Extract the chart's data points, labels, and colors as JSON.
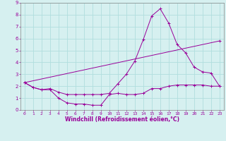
{
  "xlabel": "Windchill (Refroidissement éolien,°C)",
  "bg_color": "#d6f0f0",
  "line_color": "#990099",
  "grid_color": "#b0dede",
  "xlim": [
    -0.5,
    23.5
  ],
  "ylim": [
    0,
    9
  ],
  "xticks": [
    0,
    1,
    2,
    3,
    4,
    5,
    6,
    7,
    8,
    9,
    10,
    11,
    12,
    13,
    14,
    15,
    16,
    17,
    18,
    19,
    20,
    21,
    22,
    23
  ],
  "yticks": [
    0,
    1,
    2,
    3,
    4,
    5,
    6,
    7,
    8,
    9
  ],
  "line1_x": [
    0,
    1,
    2,
    3,
    4,
    5,
    6,
    7,
    8,
    9,
    10,
    11,
    12,
    13,
    14,
    15,
    16,
    17,
    18,
    19,
    20,
    21,
    22,
    23
  ],
  "line1_y": [
    2.3,
    1.9,
    1.7,
    1.7,
    1.0,
    0.6,
    0.5,
    0.5,
    0.4,
    0.4,
    1.3,
    1.4,
    1.3,
    1.3,
    1.4,
    1.8,
    1.8,
    2.0,
    2.1,
    2.1,
    2.1,
    2.1,
    2.0,
    2.0
  ],
  "line2_x": [
    0,
    1,
    2,
    3,
    4,
    5,
    6,
    7,
    8,
    9,
    10,
    11,
    12,
    13,
    14,
    15,
    16,
    17,
    18,
    19,
    20,
    21,
    22,
    23
  ],
  "line2_y": [
    2.3,
    1.9,
    1.7,
    1.8,
    1.5,
    1.3,
    1.3,
    1.3,
    1.3,
    1.3,
    1.4,
    2.2,
    3.0,
    4.1,
    5.9,
    7.9,
    8.5,
    7.3,
    5.5,
    4.8,
    3.6,
    3.2,
    3.1,
    2.0
  ],
  "line3_x": [
    0,
    23
  ],
  "line3_y": [
    2.3,
    5.8
  ]
}
